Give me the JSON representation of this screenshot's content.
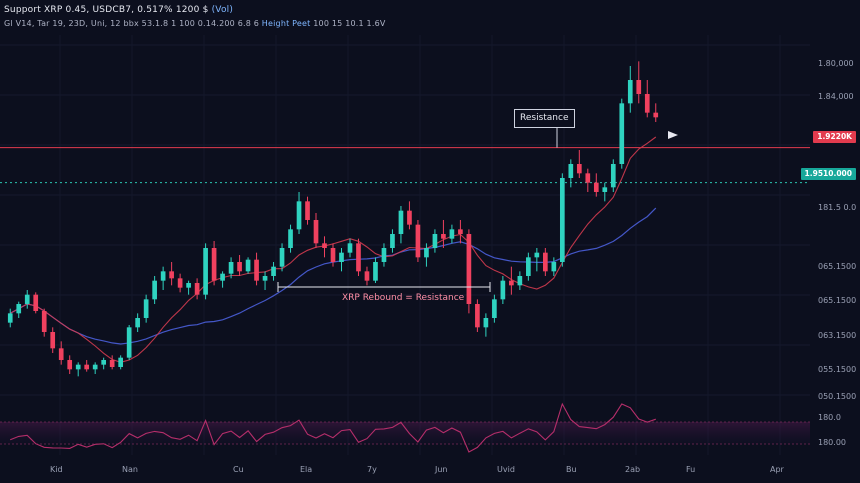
{
  "header": {
    "line1": "Support XRP 0.45, USDCB7, 0.517% 1200 $",
    "line1_extra": "(Vol)",
    "line2": "Gl V14, Tar 19, 23D, Uni, 12 bbx 53.1.8",
    "line2_extra": "1 100 0.14.200 6.8 6",
    "line2_highlight": "Height Peet",
    "line2_tail": "100 15 10.1 1.6V"
  },
  "price_axis": {
    "labels": [
      "1.80,000",
      "1.84,000",
      "181.5 0.0",
      "065.1500",
      "065.1500",
      "063.1500",
      "055.1500",
      "050.1500",
      "180.0",
      "180.00"
    ]
  },
  "badges": {
    "resistance": {
      "text": "1.9220K",
      "color": "#e23b4e"
    },
    "support": {
      "text": "1.9510.000",
      "color": "#17a89a"
    }
  },
  "annotations": {
    "callout": "Resistance",
    "range_label": "XRP Rebound = Resistance"
  },
  "time_axis": [
    "Kid",
    "Nan",
    "Cu",
    "Ela",
    "7y",
    "Jun",
    "Uvid",
    "Bu",
    "2ab",
    "Fu",
    "Apr"
  ],
  "colors": {
    "bull": "#2fd3c0",
    "bear": "#f0415f",
    "ma_fast": "#d23b4f",
    "ma_slow": "#4457c8",
    "resistance": "#e23b4e",
    "support": "#2bc4b0",
    "oscillator": "#b52e6a"
  },
  "chart_data": {
    "type": "candlestick",
    "series": [
      {
        "name": "candles",
        "ohlc": [
          [
            0.496,
            0.502,
            0.494,
            0.5
          ],
          [
            0.5,
            0.505,
            0.498,
            0.504
          ],
          [
            0.504,
            0.51,
            0.502,
            0.508
          ],
          [
            0.508,
            0.509,
            0.5,
            0.501
          ],
          [
            0.501,
            0.502,
            0.49,
            0.492
          ],
          [
            0.492,
            0.494,
            0.483,
            0.485
          ],
          [
            0.485,
            0.488,
            0.478,
            0.48
          ],
          [
            0.48,
            0.482,
            0.474,
            0.476
          ],
          [
            0.476,
            0.479,
            0.473,
            0.478
          ],
          [
            0.478,
            0.48,
            0.475,
            0.476
          ],
          [
            0.476,
            0.479,
            0.474,
            0.478
          ],
          [
            0.478,
            0.481,
            0.476,
            0.48
          ],
          [
            0.48,
            0.482,
            0.476,
            0.477
          ],
          [
            0.477,
            0.482,
            0.476,
            0.481
          ],
          [
            0.481,
            0.495,
            0.48,
            0.494
          ],
          [
            0.494,
            0.5,
            0.492,
            0.498
          ],
          [
            0.498,
            0.508,
            0.496,
            0.506
          ],
          [
            0.506,
            0.516,
            0.504,
            0.514
          ],
          [
            0.514,
            0.52,
            0.51,
            0.518
          ],
          [
            0.518,
            0.522,
            0.512,
            0.515
          ],
          [
            0.515,
            0.517,
            0.509,
            0.511
          ],
          [
            0.511,
            0.514,
            0.508,
            0.513
          ],
          [
            0.513,
            0.515,
            0.506,
            0.508
          ],
          [
            0.508,
            0.53,
            0.506,
            0.528
          ],
          [
            0.528,
            0.531,
            0.512,
            0.514
          ],
          [
            0.514,
            0.518,
            0.511,
            0.517
          ],
          [
            0.517,
            0.524,
            0.515,
            0.522
          ],
          [
            0.522,
            0.525,
            0.516,
            0.518
          ],
          [
            0.518,
            0.524,
            0.517,
            0.523
          ],
          [
            0.523,
            0.526,
            0.512,
            0.514
          ],
          [
            0.514,
            0.518,
            0.51,
            0.516
          ],
          [
            0.516,
            0.522,
            0.514,
            0.52
          ],
          [
            0.52,
            0.53,
            0.518,
            0.528
          ],
          [
            0.528,
            0.538,
            0.526,
            0.536
          ],
          [
            0.536,
            0.552,
            0.534,
            0.548
          ],
          [
            0.548,
            0.55,
            0.538,
            0.54
          ],
          [
            0.54,
            0.543,
            0.528,
            0.53
          ],
          [
            0.53,
            0.533,
            0.524,
            0.528
          ],
          [
            0.528,
            0.53,
            0.52,
            0.522
          ],
          [
            0.522,
            0.528,
            0.518,
            0.526
          ],
          [
            0.526,
            0.532,
            0.524,
            0.53
          ],
          [
            0.53,
            0.532,
            0.516,
            0.518
          ],
          [
            0.518,
            0.52,
            0.512,
            0.514
          ],
          [
            0.514,
            0.524,
            0.513,
            0.522
          ],
          [
            0.522,
            0.53,
            0.52,
            0.528
          ],
          [
            0.528,
            0.536,
            0.526,
            0.534
          ],
          [
            0.534,
            0.546,
            0.53,
            0.544
          ],
          [
            0.544,
            0.548,
            0.536,
            0.538
          ],
          [
            0.538,
            0.54,
            0.522,
            0.524
          ],
          [
            0.524,
            0.53,
            0.52,
            0.528
          ],
          [
            0.528,
            0.536,
            0.526,
            0.534
          ],
          [
            0.534,
            0.54,
            0.528,
            0.532
          ],
          [
            0.532,
            0.538,
            0.53,
            0.536
          ],
          [
            0.536,
            0.54,
            0.53,
            0.534
          ],
          [
            0.534,
            0.536,
            0.5,
            0.504
          ],
          [
            0.504,
            0.506,
            0.492,
            0.494
          ],
          [
            0.494,
            0.5,
            0.49,
            0.498
          ],
          [
            0.498,
            0.508,
            0.496,
            0.506
          ],
          [
            0.506,
            0.516,
            0.504,
            0.514
          ],
          [
            0.514,
            0.52,
            0.508,
            0.512
          ],
          [
            0.512,
            0.518,
            0.51,
            0.516
          ],
          [
            0.516,
            0.526,
            0.514,
            0.524
          ],
          [
            0.524,
            0.528,
            0.518,
            0.526
          ],
          [
            0.526,
            0.528,
            0.516,
            0.518
          ],
          [
            0.518,
            0.524,
            0.516,
            0.522
          ],
          [
            0.522,
            0.56,
            0.52,
            0.558
          ],
          [
            0.558,
            0.566,
            0.554,
            0.564
          ],
          [
            0.564,
            0.57,
            0.558,
            0.56
          ],
          [
            0.56,
            0.562,
            0.552,
            0.556
          ],
          [
            0.556,
            0.56,
            0.55,
            0.552
          ],
          [
            0.552,
            0.556,
            0.548,
            0.554
          ],
          [
            0.554,
            0.566,
            0.552,
            0.564
          ],
          [
            0.564,
            0.592,
            0.562,
            0.59
          ],
          [
            0.59,
            0.606,
            0.586,
            0.6
          ],
          [
            0.6,
            0.608,
            0.59,
            0.594
          ],
          [
            0.594,
            0.6,
            0.584,
            0.586
          ],
          [
            0.586,
            0.59,
            0.582,
            0.584
          ]
        ]
      }
    ],
    "resistance_level": 0.571,
    "support_level": 0.556,
    "ylim": [
      0.465,
      0.615
    ]
  }
}
